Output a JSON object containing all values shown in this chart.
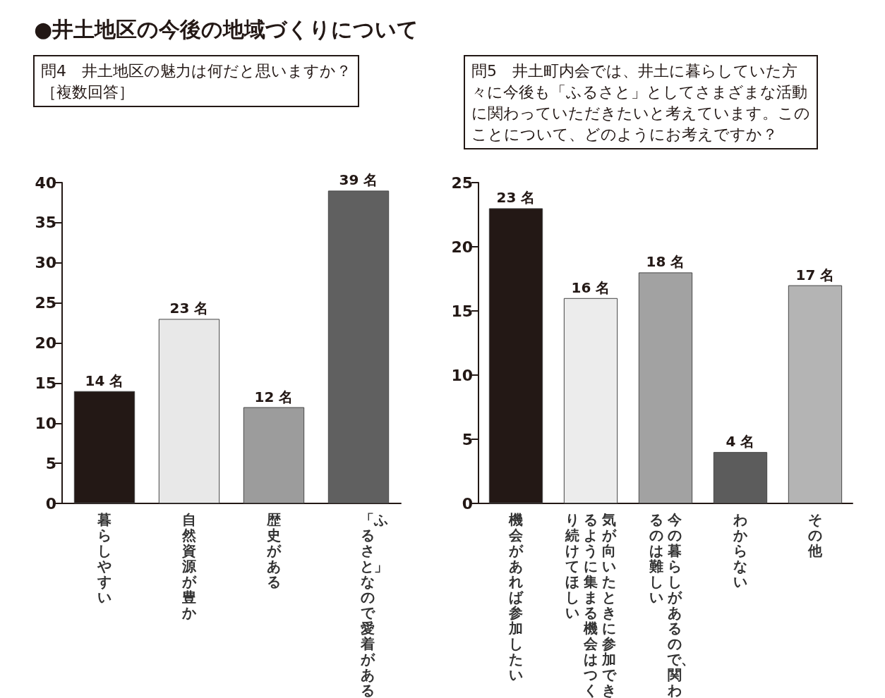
{
  "chart_data": [
    {
      "type": "bar",
      "annotations": [
        "●井土地区の今後の地域づくりについて"
      ],
      "title": "問4　井土地区の魅力は何だと思いますか？［複数回答］",
      "categories": [
        "暮らしやすい",
        "自然資源が豊か",
        "歴史がある",
        "「ふるさと」なので愛着がある"
      ],
      "values": [
        14,
        23,
        12,
        39
      ],
      "colors": [
        "#231815",
        "#e8e8e8",
        "#9c9c9c",
        "#606060"
      ],
      "value_labels": [
        "14 名",
        "23 名",
        "12 名",
        "39 名"
      ],
      "ylim": [
        0,
        40
      ],
      "yticks": [
        0,
        5,
        10,
        15,
        20,
        25,
        30,
        35,
        40
      ],
      "grid": false
    },
    {
      "type": "bar",
      "title": "問5　井土町内会では、井土に暮らしていた方々に今後も「ふるさと」としてさまざまな活動に関わっていただきたいと考えています。このことについて、どのようにお考えですか？",
      "categories": [
        "機会があれば参加したい",
        "気が向いたときに参加できるように集まる機会はつくり続けてほしい",
        "今の暮らしがあるので、関わるのは難しい",
        "わからない",
        "その他"
      ],
      "values": [
        23,
        16,
        18,
        4,
        17
      ],
      "colors": [
        "#231815",
        "#ececec",
        "#a2a2a2",
        "#5c5c5c",
        "#b4b4b4"
      ],
      "value_labels": [
        "23 名",
        "16 名",
        "18 名",
        "4 名",
        "17 名"
      ],
      "ylim": [
        0,
        25
      ],
      "yticks": [
        0,
        5,
        10,
        15,
        20,
        25
      ],
      "grid": false
    }
  ]
}
